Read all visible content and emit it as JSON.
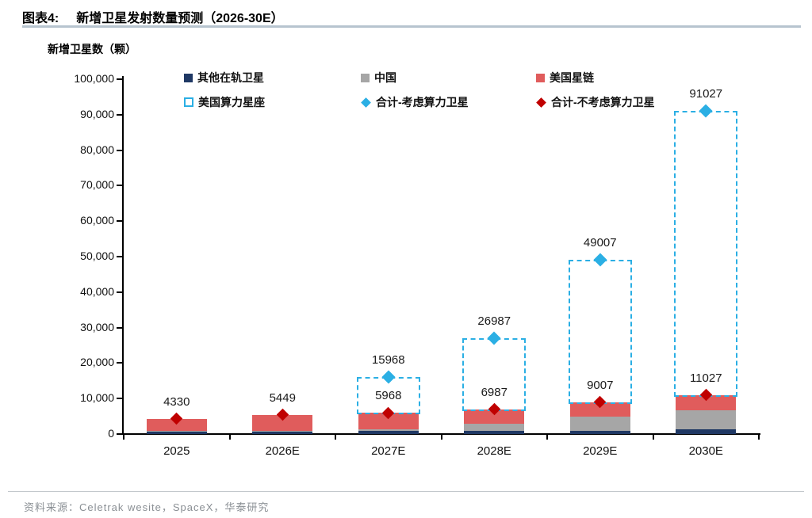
{
  "header": {
    "tag": "图表4:",
    "title": "新增卫星发射数量预测（2026-30E）"
  },
  "axis_title": "新增卫星数（颗）",
  "legend": [
    {
      "label": "其他在轨卫星",
      "marker": "square",
      "color": "#1f3864"
    },
    {
      "label": "中国",
      "marker": "square",
      "color": "#a6a6a6"
    },
    {
      "label": "美国星链",
      "marker": "square",
      "color": "#e05c5c"
    },
    {
      "label": "美国算力星座",
      "marker": "dashed-square",
      "color": "#2bafe4"
    },
    {
      "label": "合计-考虑算力卫星",
      "marker": "diamond",
      "color": "#2bafe4"
    },
    {
      "label": "合计-不考虑算力卫星",
      "marker": "diamond",
      "color": "#c00000"
    }
  ],
  "chart_data": {
    "type": "bar",
    "subtype": "stacked-bars-with-dashed-extension-and-diamond-markers",
    "title": "新增卫星发射数量预测（2026-30E）",
    "ylabel": "新增卫星数（颗）",
    "xlabel": "",
    "categories": [
      "2025",
      "2026E",
      "2027E",
      "2028E",
      "2029E",
      "2030E"
    ],
    "series": [
      {
        "name": "其他在轨卫星",
        "style": "solid",
        "color": "#1f3864",
        "values": [
          700,
          800,
          800,
          1000,
          1000,
          1300
        ]
      },
      {
        "name": "中国",
        "style": "solid",
        "color": "#a6a6a6",
        "values": [
          130,
          150,
          500,
          2000,
          4000,
          5500
        ]
      },
      {
        "name": "美国星链",
        "style": "solid",
        "color": "#e05c5c",
        "values": [
          3500,
          4499,
          4668,
          3987,
          4007,
          4227
        ]
      },
      {
        "name": "美国算力星座",
        "style": "dashed-outline",
        "color": "#2bafe4",
        "values": [
          0,
          0,
          10000,
          20000,
          40000,
          80000
        ]
      }
    ],
    "markers": [
      {
        "name": "合计-考虑算力卫星",
        "shape": "diamond",
        "color": "#2bafe4",
        "values": [
          null,
          null,
          15968,
          26987,
          49007,
          91027
        ]
      },
      {
        "name": "合计-不考虑算力卫星",
        "shape": "diamond",
        "color": "#c00000",
        "values": [
          4330,
          5449,
          5968,
          6987,
          9007,
          11027
        ]
      }
    ],
    "data_labels_with_computing": [
      "",
      "",
      "15968",
      "26987",
      "49007",
      "91027"
    ],
    "data_labels_without_computing": [
      "4330",
      "5449",
      "5968",
      "6987",
      "9007",
      "11027"
    ],
    "ylim": [
      0,
      100000
    ],
    "ytick_step": 10000,
    "ytick_labels": [
      "0",
      "10,000",
      "20,000",
      "30,000",
      "40,000",
      "50,000",
      "60,000",
      "70,000",
      "80,000",
      "90,000",
      "100,000"
    ],
    "grid": false,
    "legend_position": "top"
  },
  "footer": {
    "source": "资料来源：Celetrak wesite，SpaceX，华泰研究"
  }
}
